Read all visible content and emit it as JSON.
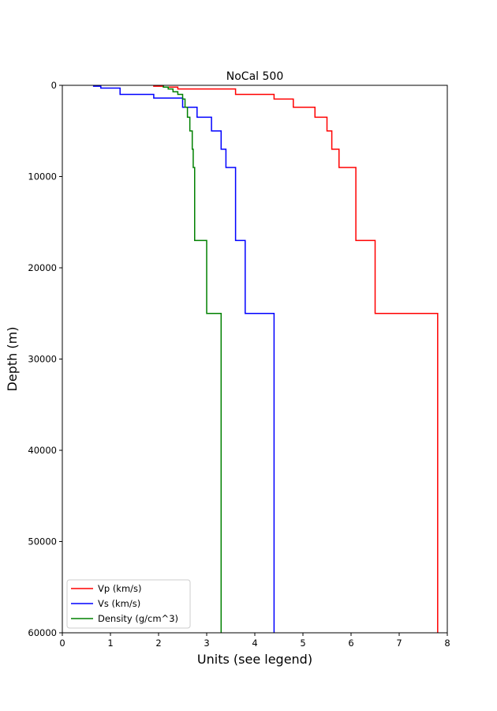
{
  "chart_data": {
    "type": "line",
    "title": "NoCal 500",
    "xlabel": "Units (see legend)",
    "ylabel": "Depth (m)",
    "xlim": [
      0,
      8
    ],
    "ylim": [
      60000,
      0
    ],
    "y_inverted": true,
    "grid": false,
    "legend_position": "lower-left",
    "x_ticks": [
      "0",
      "1",
      "2",
      "3",
      "4",
      "5",
      "6",
      "7",
      "8"
    ],
    "y_ticks": [
      "0",
      "10000",
      "20000",
      "30000",
      "40000",
      "50000",
      "60000"
    ],
    "series": [
      {
        "name": "Vp (km/s)",
        "color": "#ff0000",
        "step_profile": [
          {
            "value": 1.9,
            "top": 0,
            "bottom": 100
          },
          {
            "value": 2.1,
            "top": 100,
            "bottom": 200
          },
          {
            "value": 2.4,
            "top": 200,
            "bottom": 400
          },
          {
            "value": 3.6,
            "top": 400,
            "bottom": 1000
          },
          {
            "value": 4.4,
            "top": 1000,
            "bottom": 1500
          },
          {
            "value": 4.8,
            "top": 1500,
            "bottom": 2400
          },
          {
            "value": 5.25,
            "top": 2400,
            "bottom": 3500
          },
          {
            "value": 5.5,
            "top": 3500,
            "bottom": 5000
          },
          {
            "value": 5.6,
            "top": 5000,
            "bottom": 7000
          },
          {
            "value": 5.75,
            "top": 7000,
            "bottom": 9000
          },
          {
            "value": 6.1,
            "top": 9000,
            "bottom": 17000
          },
          {
            "value": 6.5,
            "top": 17000,
            "bottom": 25000
          },
          {
            "value": 7.8,
            "top": 25000,
            "bottom": 60000
          }
        ]
      },
      {
        "name": "Vs (km/s)",
        "color": "#0000ff",
        "step_profile": [
          {
            "value": 0.65,
            "top": 0,
            "bottom": 100
          },
          {
            "value": 0.8,
            "top": 100,
            "bottom": 300
          },
          {
            "value": 1.2,
            "top": 300,
            "bottom": 1000
          },
          {
            "value": 1.9,
            "top": 1000,
            "bottom": 1400
          },
          {
            "value": 2.5,
            "top": 1400,
            "bottom": 2400
          },
          {
            "value": 2.8,
            "top": 2400,
            "bottom": 3500
          },
          {
            "value": 3.1,
            "top": 3500,
            "bottom": 5000
          },
          {
            "value": 3.3,
            "top": 5000,
            "bottom": 7000
          },
          {
            "value": 3.4,
            "top": 7000,
            "bottom": 9000
          },
          {
            "value": 3.6,
            "top": 9000,
            "bottom": 17000
          },
          {
            "value": 3.8,
            "top": 17000,
            "bottom": 25000
          },
          {
            "value": 4.4,
            "top": 25000,
            "bottom": 60000
          }
        ]
      },
      {
        "name": "Density (g/cm^3)",
        "color": "#008000",
        "step_profile": [
          {
            "value": 2.1,
            "top": 0,
            "bottom": 200
          },
          {
            "value": 2.2,
            "top": 200,
            "bottom": 400
          },
          {
            "value": 2.3,
            "top": 400,
            "bottom": 700
          },
          {
            "value": 2.4,
            "top": 700,
            "bottom": 1000
          },
          {
            "value": 2.5,
            "top": 1000,
            "bottom": 1500
          },
          {
            "value": 2.55,
            "top": 1500,
            "bottom": 2400
          },
          {
            "value": 2.6,
            "top": 2400,
            "bottom": 3500
          },
          {
            "value": 2.65,
            "top": 3500,
            "bottom": 5000
          },
          {
            "value": 2.7,
            "top": 5000,
            "bottom": 7000
          },
          {
            "value": 2.72,
            "top": 7000,
            "bottom": 9000
          },
          {
            "value": 2.75,
            "top": 9000,
            "bottom": 17000
          },
          {
            "value": 3.0,
            "top": 17000,
            "bottom": 25000
          },
          {
            "value": 3.3,
            "top": 25000,
            "bottom": 60000
          }
        ]
      }
    ]
  }
}
